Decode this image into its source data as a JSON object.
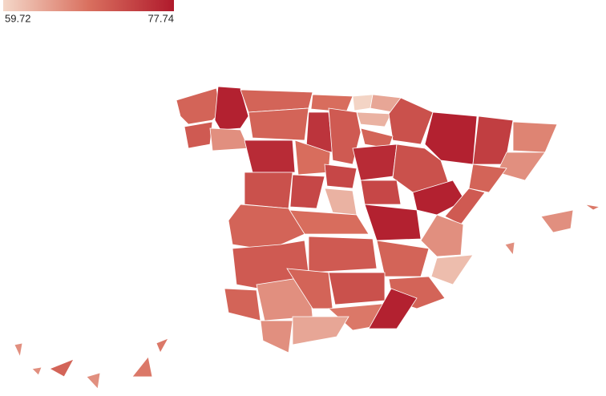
{
  "chart_data": {
    "type": "choropleth",
    "legend": {
      "min": 59.72,
      "max": 77.74
    },
    "values": [
      70,
      77,
      71,
      66,
      70,
      69,
      60,
      64,
      63,
      72,
      70,
      75,
      71,
      70,
      76,
      69,
      76,
      77,
      74,
      67,
      66,
      72,
      70,
      72,
      73,
      73,
      73,
      77,
      71,
      63,
      77,
      66,
      69,
      70,
      71,
      71,
      70,
      62,
      70,
      70,
      66,
      70,
      72,
      68,
      77,
      66,
      64,
      66,
      68,
      66,
      68,
      68,
      70,
      66,
      66,
      66
    ]
  }
}
